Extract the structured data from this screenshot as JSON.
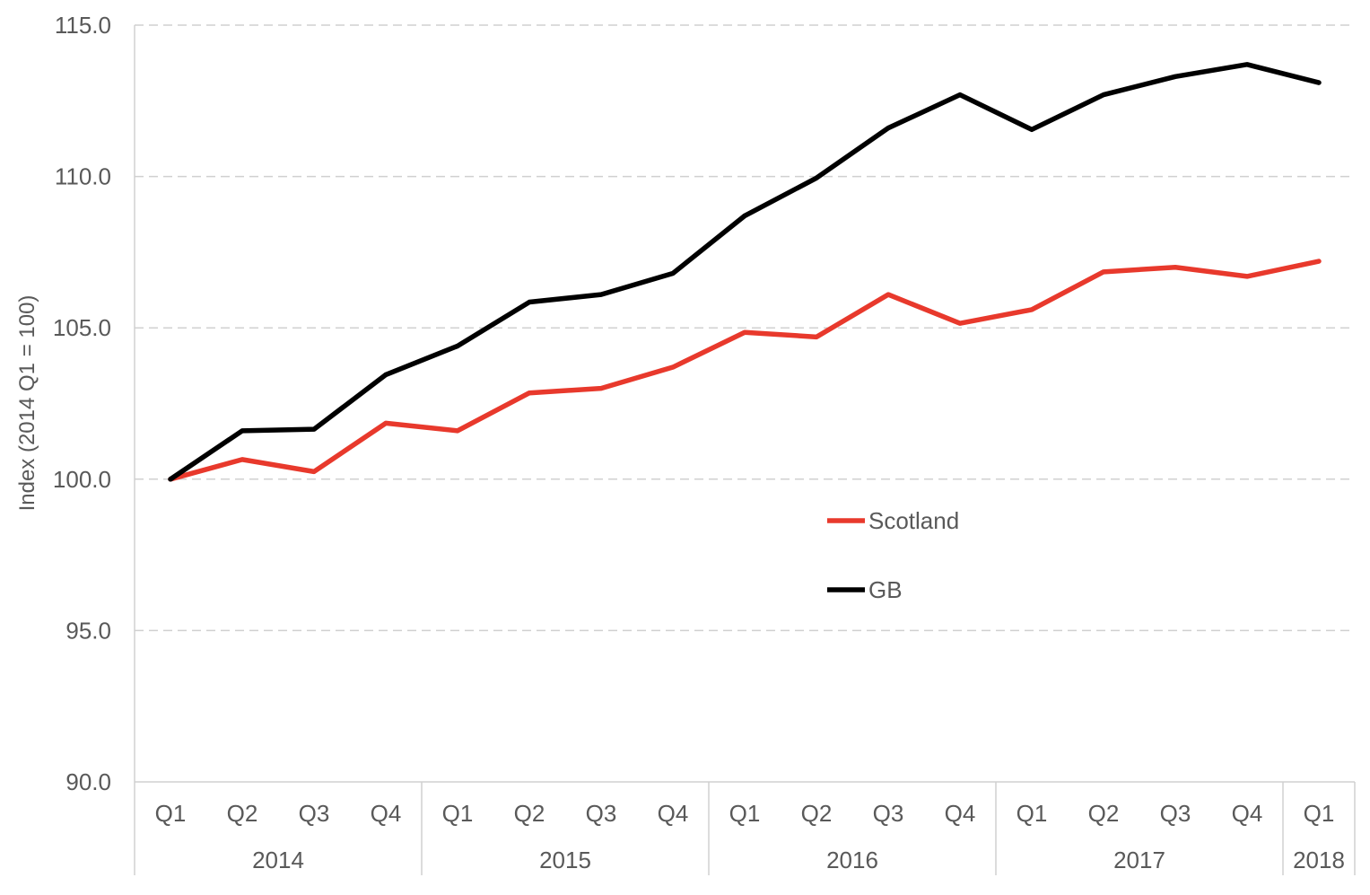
{
  "chart_data": {
    "type": "line",
    "title": "",
    "ylabel": "Index (2014 Q1 = 100)",
    "xlabel": "",
    "ylim": [
      90.0,
      115.0
    ],
    "yticks": [
      "90.0",
      "95.0",
      "100.0",
      "105.0",
      "110.0",
      "115.0"
    ],
    "ytick_values": [
      90,
      95,
      100,
      105,
      110,
      115
    ],
    "grid": "horizontal dashed",
    "legend_position": "center",
    "categories": [
      "Q1",
      "Q2",
      "Q3",
      "Q4",
      "Q1",
      "Q2",
      "Q3",
      "Q4",
      "Q1",
      "Q2",
      "Q3",
      "Q4",
      "Q1",
      "Q2",
      "Q3",
      "Q4",
      "Q1"
    ],
    "groups": [
      {
        "label": "2014",
        "count": 4
      },
      {
        "label": "2015",
        "count": 4
      },
      {
        "label": "2016",
        "count": 4
      },
      {
        "label": "2017",
        "count": 4
      },
      {
        "label": "2018",
        "count": 1
      }
    ],
    "series": [
      {
        "name": "Scotland",
        "color": "#e8392c",
        "values": [
          100.0,
          100.65,
          100.25,
          101.85,
          101.6,
          102.85,
          103.0,
          103.7,
          104.85,
          104.7,
          106.1,
          105.15,
          105.6,
          106.85,
          107.0,
          106.7,
          107.2
        ]
      },
      {
        "name": "GB",
        "color": "#000000",
        "values": [
          100.0,
          101.6,
          101.65,
          103.45,
          104.4,
          105.85,
          106.1,
          106.8,
          108.7,
          109.95,
          111.6,
          112.7,
          111.55,
          112.7,
          113.3,
          113.7,
          113.1
        ]
      }
    ]
  }
}
